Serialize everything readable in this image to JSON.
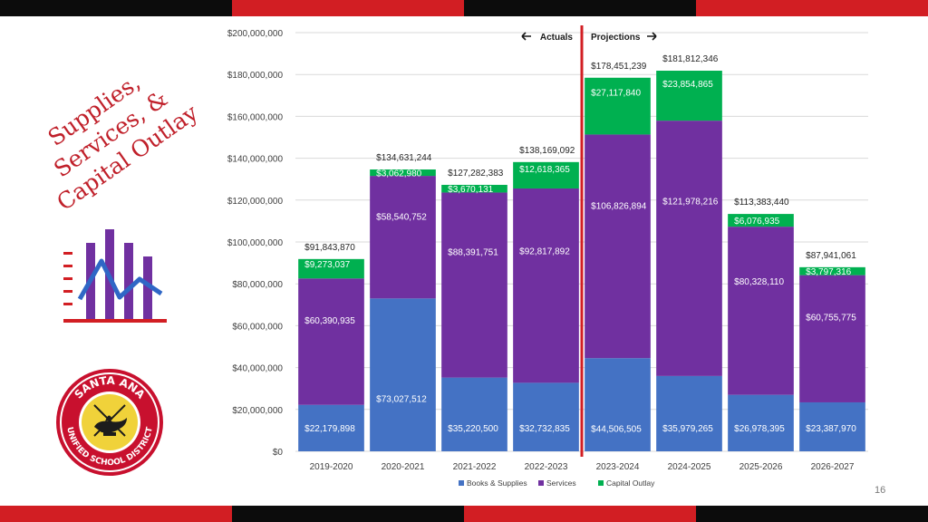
{
  "slide": {
    "title_lines": [
      "Supplies,",
      "Services, &",
      "Capital Outlay"
    ],
    "page_number": "16",
    "logo": {
      "top_text": "SANTA ANA",
      "bottom_text": "UNIFIED SCHOOL DISTRICT"
    }
  },
  "colors": {
    "books_supplies": "#4472c4",
    "services": "#7030a0",
    "capital_outlay": "#00b050",
    "divider": "#d21e23",
    "accent_red": "#d21e23"
  },
  "chart_data": {
    "type": "bar",
    "stacked": true,
    "categories": [
      "2019-2020",
      "2020-2021",
      "2021-2022",
      "2022-2023",
      "2023-2024",
      "2024-2025",
      "2025-2026",
      "2026-2027"
    ],
    "series": [
      {
        "name": "Books & Supplies",
        "values": [
          22179898,
          73027512,
          35220500,
          32732835,
          44506505,
          35979265,
          26978395,
          23387970
        ],
        "labels": [
          "$22,179,898",
          "$73,027,512",
          "$35,220,500",
          "$32,732,835",
          "$44,506,505",
          "$35,979,265",
          "$26,978,395",
          "$23,387,970"
        ]
      },
      {
        "name": "Services",
        "values": [
          60390935,
          58540752,
          88391751,
          92817892,
          106826894,
          121978216,
          80328110,
          60755775
        ],
        "labels": [
          "$60,390,935",
          "$58,540,752",
          "$88,391,751",
          "$92,817,892",
          "$106,826,894",
          "$121,978,216",
          "$80,328,110",
          "$60,755,775"
        ]
      },
      {
        "name": "Capital Outlay",
        "values": [
          9273037,
          3062980,
          3670131,
          12618365,
          27117840,
          23854865,
          6076935,
          3797316
        ],
        "labels": [
          "$9,273,037",
          "$3,062,980",
          "$3,670,131",
          "$12,618,365",
          "$27,117,840",
          "$23,854,865",
          "$6,076,935",
          "$3,797,316"
        ]
      }
    ],
    "totals": [
      91843870,
      134631244,
      127282383,
      138169092,
      178451239,
      181812346,
      113383440,
      87941061
    ],
    "total_labels": [
      "$91,843,870",
      "$134,631,244",
      "$127,282,383",
      "$138,169,092",
      "$178,451,239",
      "$181,812,346",
      "$113,383,440",
      "$87,941,061"
    ],
    "ylim": [
      0,
      200000000
    ],
    "yticks": [
      0,
      20000000,
      40000000,
      60000000,
      80000000,
      100000000,
      120000000,
      140000000,
      160000000,
      180000000,
      200000000
    ],
    "ytick_labels": [
      "$0",
      "$20,000,000",
      "$40,000,000",
      "$60,000,000",
      "$80,000,000",
      "$100,000,000",
      "$120,000,000",
      "$140,000,000",
      "$160,000,000",
      "$180,000,000",
      "$200,000,000"
    ],
    "grid": true,
    "legend_position": "bottom",
    "annotations": {
      "actuals": "Actuals",
      "projections": "Projections",
      "split_after_category": "2022-2023"
    }
  }
}
